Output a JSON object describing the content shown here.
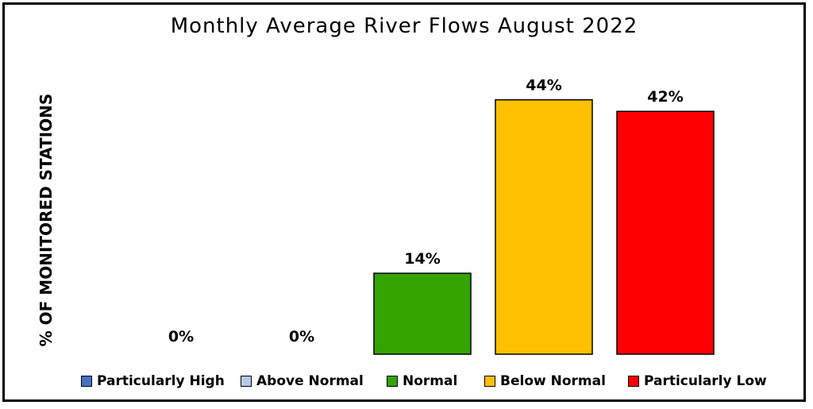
{
  "chart_data": {
    "type": "bar",
    "title": "Monthly Average River Flows August 2022",
    "ylabel": "% OF MONITORED STATIONS",
    "xlabel": "",
    "ylim": [
      0,
      50
    ],
    "grid": false,
    "legend_position": "bottom",
    "categories": [
      "Particularly High",
      "Above Normal",
      "Normal",
      "Below Normal",
      "Particularly Low"
    ],
    "values": [
      0,
      0,
      14,
      44,
      42
    ],
    "data_labels": [
      "0%",
      "0%",
      "14%",
      "44%",
      "42%"
    ],
    "colors": [
      "#4472c4",
      "#b4c7e7",
      "#33a300",
      "#ffc000",
      "#ff0000"
    ]
  }
}
